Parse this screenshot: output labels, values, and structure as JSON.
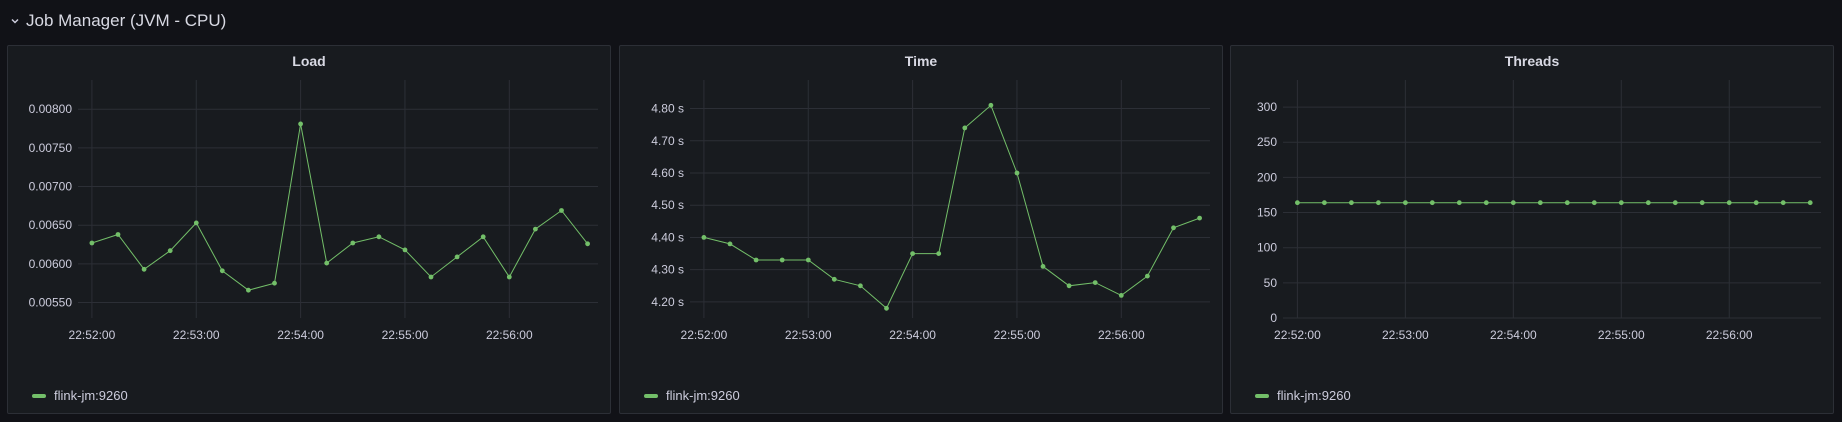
{
  "row": {
    "title": "Job Manager (JVM - CPU)",
    "collapse_icon": "chevron-down-icon"
  },
  "series_color": "#73bf69",
  "panels": [
    {
      "title": "Load",
      "legend": "flink-jm:9260"
    },
    {
      "title": "Time",
      "legend": "flink-jm:9260"
    },
    {
      "title": "Threads",
      "legend": "flink-jm:9260"
    }
  ],
  "chart_data": [
    {
      "type": "line",
      "title": "Load",
      "x_ticks": [
        "22:52:00",
        "22:53:00",
        "22:54:00",
        "22:55:00",
        "22:56:00"
      ],
      "x": [
        "22:52:00",
        "22:52:15",
        "22:52:30",
        "22:52:45",
        "22:53:00",
        "22:53:15",
        "22:53:30",
        "22:53:45",
        "22:54:00",
        "22:54:15",
        "22:54:30",
        "22:54:45",
        "22:55:00",
        "22:55:15",
        "22:55:30",
        "22:55:45",
        "22:56:00",
        "22:56:15",
        "22:56:30",
        "22:56:45"
      ],
      "ylim": [
        0.0053,
        0.0083
      ],
      "y_ticks": [
        0.0055,
        0.006,
        0.0065,
        0.007,
        0.0075,
        0.008
      ],
      "y_tick_labels": [
        "0.00550",
        "0.00600",
        "0.00650",
        "0.00700",
        "0.00750",
        "0.00800"
      ],
      "series": [
        {
          "name": "flink-jm:9260",
          "values": [
            0.00627,
            0.00638,
            0.00593,
            0.00617,
            0.00653,
            0.00591,
            0.00566,
            0.00575,
            0.00781,
            0.00601,
            0.00627,
            0.00635,
            0.00618,
            0.00583,
            0.00609,
            0.00635,
            0.00583,
            0.00645,
            0.00669,
            0.00626
          ]
        }
      ],
      "grid": true,
      "legend_position": "bottom-left"
    },
    {
      "type": "line",
      "title": "Time",
      "x_ticks": [
        "22:52:00",
        "22:53:00",
        "22:54:00",
        "22:55:00",
        "22:56:00"
      ],
      "x": [
        "22:52:00",
        "22:52:15",
        "22:52:30",
        "22:52:45",
        "22:53:00",
        "22:53:15",
        "22:53:30",
        "22:53:45",
        "22:54:00",
        "22:54:15",
        "22:54:30",
        "22:54:45",
        "22:55:00",
        "22:55:15",
        "22:55:30",
        "22:55:45",
        "22:56:00",
        "22:56:15",
        "22:56:30",
        "22:56:45"
      ],
      "ylim": [
        4.15,
        4.87
      ],
      "y_ticks": [
        4.2,
        4.3,
        4.4,
        4.5,
        4.6,
        4.7,
        4.8
      ],
      "y_tick_labels": [
        "4.20 s",
        "4.30 s",
        "4.40 s",
        "4.50 s",
        "4.60 s",
        "4.70 s",
        "4.80 s"
      ],
      "series": [
        {
          "name": "flink-jm:9260",
          "values": [
            4.4,
            4.38,
            4.33,
            4.33,
            4.33,
            4.27,
            4.25,
            4.18,
            4.35,
            4.35,
            4.74,
            4.81,
            4.6,
            4.31,
            4.25,
            4.26,
            4.22,
            4.28,
            4.43,
            4.46
          ]
        }
      ],
      "grid": true,
      "legend_position": "bottom-left"
    },
    {
      "type": "line",
      "title": "Threads",
      "x_ticks": [
        "22:52:00",
        "22:53:00",
        "22:54:00",
        "22:55:00",
        "22:56:00"
      ],
      "x": [
        "22:52:00",
        "22:52:15",
        "22:52:30",
        "22:52:45",
        "22:53:00",
        "22:53:15",
        "22:53:30",
        "22:53:45",
        "22:54:00",
        "22:54:15",
        "22:54:30",
        "22:54:45",
        "22:55:00",
        "22:55:15",
        "22:55:30",
        "22:55:45",
        "22:56:00",
        "22:56:15",
        "22:56:30",
        "22:56:45"
      ],
      "ylim": [
        0,
        330
      ],
      "y_ticks": [
        0,
        50,
        100,
        150,
        200,
        250,
        300
      ],
      "y_tick_labels": [
        "0",
        "50",
        "100",
        "150",
        "200",
        "250",
        "300"
      ],
      "series": [
        {
          "name": "flink-jm:9260",
          "values": [
            164,
            164,
            164,
            164,
            164,
            164,
            164,
            164,
            164,
            164,
            164,
            164,
            164,
            164,
            164,
            164,
            164,
            164,
            164,
            164
          ]
        }
      ],
      "grid": true,
      "legend_position": "bottom-left"
    }
  ]
}
